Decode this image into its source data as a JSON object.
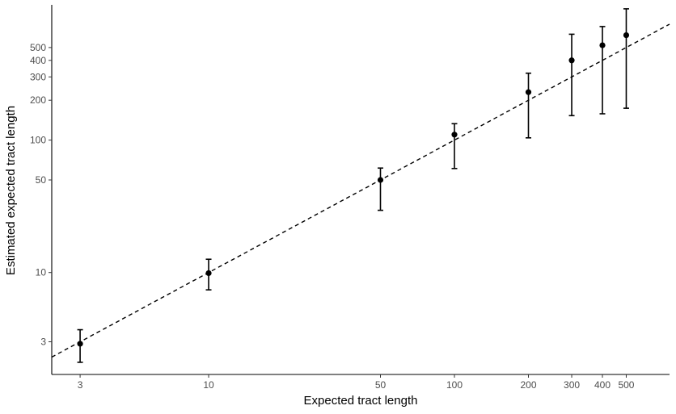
{
  "chart_data": {
    "type": "scatter",
    "title": "",
    "xlabel": "Expected tract length",
    "ylabel": "Estimated expected tract length",
    "x_scale": "log",
    "y_scale": "log",
    "xlim": [
      2.3,
      750
    ],
    "ylim": [
      1.7,
      1050
    ],
    "x_ticks": [
      3,
      10,
      50,
      100,
      200,
      300,
      400,
      500
    ],
    "y_ticks": [
      3,
      10,
      50,
      100,
      200,
      300,
      400,
      500
    ],
    "grid": false,
    "legend": "none",
    "points": [
      {
        "x": 3,
        "y": 2.9,
        "lower": 2.1,
        "upper": 3.7
      },
      {
        "x": 10,
        "y": 9.9,
        "lower": 7.4,
        "upper": 12.6
      },
      {
        "x": 50,
        "y": 50,
        "lower": 29.5,
        "upper": 61.5
      },
      {
        "x": 100,
        "y": 110,
        "lower": 61,
        "upper": 133
      },
      {
        "x": 200,
        "y": 230,
        "lower": 104,
        "upper": 320
      },
      {
        "x": 300,
        "y": 400,
        "lower": 153,
        "upper": 630
      },
      {
        "x": 400,
        "y": 520,
        "lower": 158,
        "upper": 720
      },
      {
        "x": 500,
        "y": 620,
        "lower": 174,
        "upper": 980
      }
    ],
    "reference_line": {
      "style": "dashed",
      "slope": 1,
      "intercept": 0,
      "from_x": 2.3,
      "to_x": 750
    },
    "colors": {
      "points": "#000000",
      "error_bars": "#000000",
      "reference_line": "#000000",
      "axis": "#000000",
      "tick_labels": "#4d4d4d"
    }
  }
}
